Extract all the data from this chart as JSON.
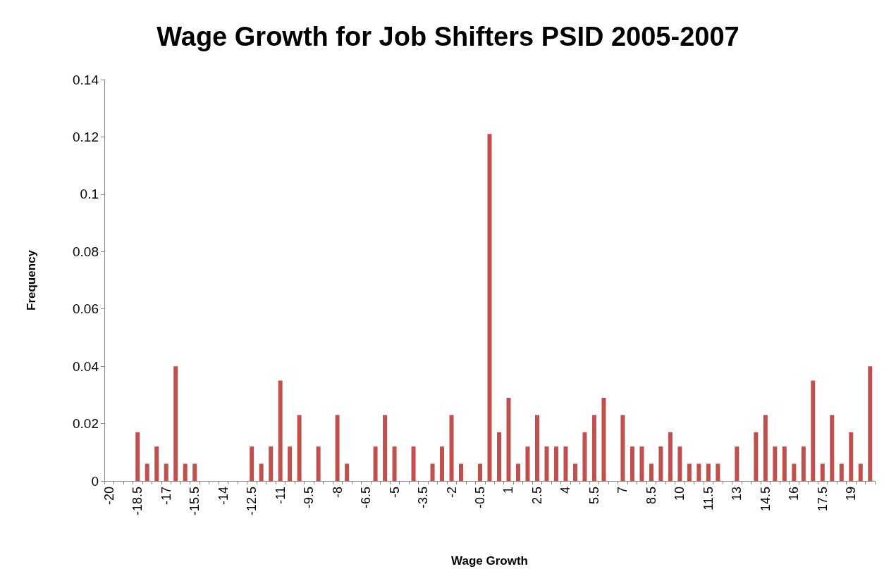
{
  "chart_data": {
    "type": "bar",
    "title": "Wage Growth for Job Shifters PSID 2005-2007",
    "xlabel": "Wage Growth",
    "ylabel": "Frequency",
    "categories": [
      "-20",
      null,
      null,
      "-18.5",
      null,
      null,
      "-17",
      null,
      null,
      "-15.5",
      null,
      null,
      "-14",
      null,
      null,
      "-12.5",
      null,
      null,
      "-11",
      null,
      null,
      "-9.5",
      null,
      null,
      "-8",
      null,
      null,
      "-6.5",
      null,
      null,
      "-5",
      null,
      null,
      "-3.5",
      null,
      null,
      "-2",
      null,
      null,
      "-0.5",
      null,
      null,
      "1",
      null,
      null,
      "2.5",
      null,
      null,
      "4",
      null,
      null,
      "5.5",
      null,
      null,
      "7",
      null,
      null,
      "8.5",
      null,
      null,
      "10",
      null,
      null,
      "11.5",
      null,
      null,
      "13",
      null,
      null,
      "14.5",
      null,
      null,
      "16",
      null,
      null,
      "17.5",
      null,
      null,
      "19",
      null,
      null
    ],
    "values": [
      0,
      0,
      0,
      0.017,
      0.006,
      0.012,
      0.006,
      0.04,
      0.006,
      0.006,
      0,
      0,
      0,
      0,
      0,
      0.012,
      0.006,
      0.012,
      0.035,
      0.012,
      0.023,
      0,
      0.012,
      0,
      0.023,
      0.006,
      0,
      0,
      0.012,
      0.023,
      0.012,
      0,
      0.012,
      0,
      0.006,
      0.012,
      0.023,
      0.006,
      0,
      0.006,
      0.121,
      0.017,
      0.029,
      0.006,
      0.012,
      0.023,
      0.012,
      0.012,
      0.012,
      0.006,
      0.017,
      0.023,
      0.029,
      0,
      0.023,
      0.012,
      0.012,
      0.006,
      0.012,
      0.017,
      0.012,
      0.006,
      0.006,
      0.006,
      0.006,
      0,
      0.012,
      0,
      0.017,
      0.023,
      0.012,
      0.012,
      0.006,
      0.012,
      0.035,
      0.006,
      0.023,
      0.006,
      0.017,
      0.006,
      0.04
    ],
    "color": "#c0504d",
    "ylim": [
      0,
      0.14
    ],
    "yticks": [
      0,
      0.02,
      0.04,
      0.06,
      0.08,
      0.1,
      0.12,
      0.14
    ],
    "grid": false
  }
}
